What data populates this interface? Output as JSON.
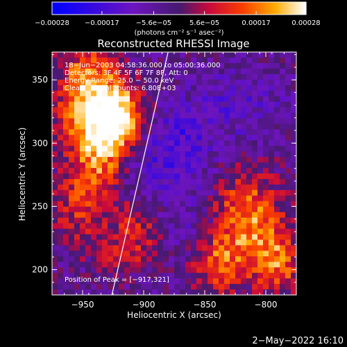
{
  "chart_data": {
    "type": "heatmap",
    "title": "Reconstructed RHESSI Image",
    "xlabel": "Heliocentric X (arcsec)",
    "ylabel": "Heliocentric Y (arcsec)",
    "xlim": [
      -975,
      -775
    ],
    "ylim": [
      180,
      372
    ],
    "xticks": [
      -950,
      -900,
      -850,
      -800
    ],
    "yticks": [
      200,
      250,
      300,
      350
    ],
    "xtick_labels": [
      "−950",
      "−900",
      "−850",
      "−800"
    ],
    "ytick_labels": [
      "200",
      "250",
      "300",
      "350"
    ],
    "colorbar": {
      "range": [
        -0.00028,
        0.00028
      ],
      "ticks": [
        -0.00028,
        -0.00017,
        -5.6e-05,
        5.6e-05,
        0.00017,
        0.00028
      ],
      "tick_labels": [
        "−0.00028",
        "−0.00017",
        "−5.6e−05",
        "5.6e−05",
        "0.00017",
        "0.00028"
      ],
      "unit_label": "(photons cm⁻² s⁻¹ asec⁻²)"
    },
    "annotations": [
      "18−Jun−2003 04:58:36.000 to 05:00:36.000",
      "Detectors: 3F 4F 5F 6F 7F 8F, Att: 0",
      "Energy Range: 25.0 − 50.0 keV",
      "Clean     Total counts: 6.80E+03"
    ],
    "peak_label": "Position of Peak = [−917,321]",
    "limb_line": {
      "x": [
        -926,
        -880
      ],
      "y": [
        180,
        372
      ]
    },
    "bright_regions": [
      {
        "x": -945,
        "y": 335,
        "level": 0.00028,
        "sx": 18,
        "sy": 28
      },
      {
        "x": -918,
        "y": 321,
        "level": 0.00026,
        "sx": 14,
        "sy": 18
      },
      {
        "x": -935,
        "y": 290,
        "level": 0.00018,
        "sx": 14,
        "sy": 24
      },
      {
        "x": -955,
        "y": 250,
        "level": 0.00012,
        "sx": 16,
        "sy": 22
      },
      {
        "x": -905,
        "y": 240,
        "level": 0.0001,
        "sx": 14,
        "sy": 14
      },
      {
        "x": -915,
        "y": 215,
        "level": 0.00011,
        "sx": 18,
        "sy": 14
      },
      {
        "x": -815,
        "y": 240,
        "level": 0.00022,
        "sx": 20,
        "sy": 26
      },
      {
        "x": -840,
        "y": 205,
        "level": 0.00016,
        "sx": 16,
        "sy": 16
      },
      {
        "x": -790,
        "y": 205,
        "level": 0.00018,
        "sx": 14,
        "sy": 18
      }
    ],
    "dark_regions": [
      {
        "x": -870,
        "y": 300,
        "level": -0.00012,
        "sx": 20,
        "sy": 20
      },
      {
        "x": -820,
        "y": 330,
        "level": -8e-05,
        "sx": 24,
        "sy": 18
      },
      {
        "x": -900,
        "y": 275,
        "level": -5e-05,
        "sx": 22,
        "sy": 18
      },
      {
        "x": -865,
        "y": 240,
        "level": -6e-05,
        "sx": 18,
        "sy": 20
      }
    ]
  },
  "footer_timestamp": "2−May−2022 16:10"
}
